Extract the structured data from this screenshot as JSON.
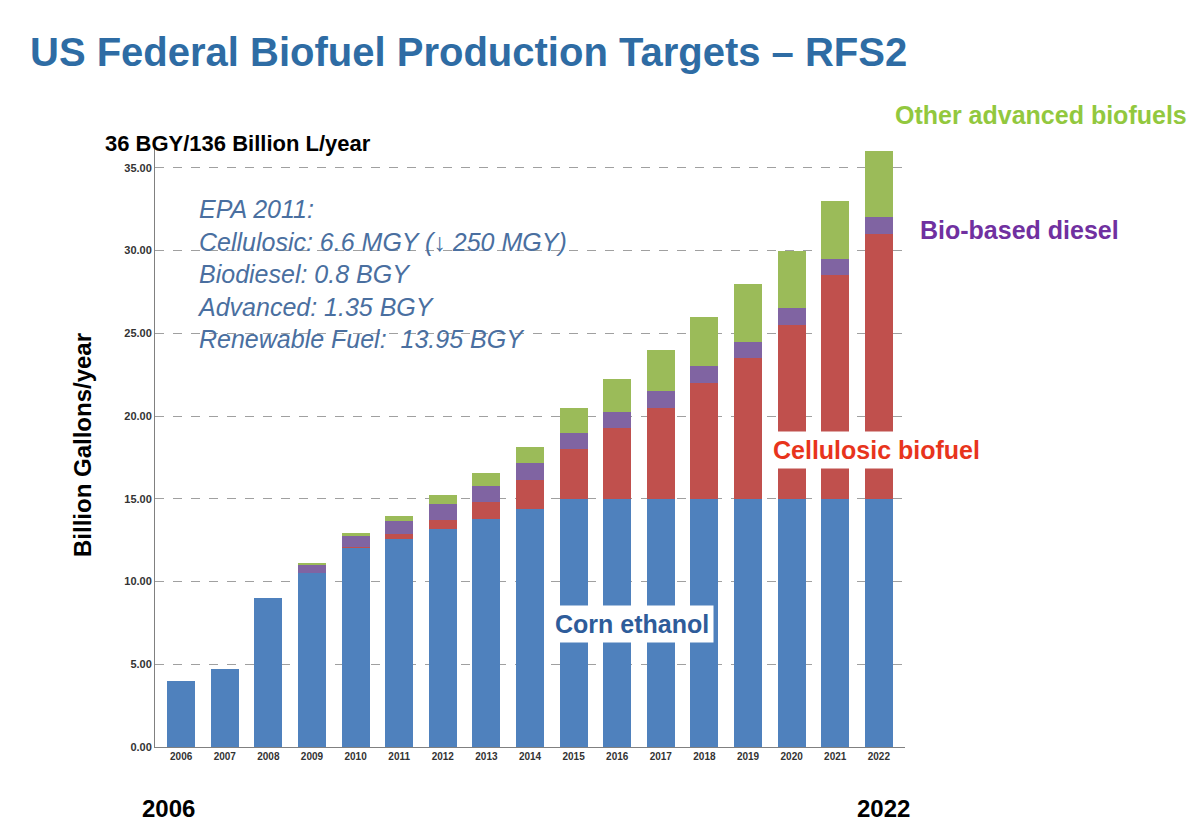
{
  "chart_data": {
    "type": "bar",
    "title": "US Federal Biofuel Production Targets – RFS2",
    "y_label": "Billion Gallons/year",
    "annotations": [
      "36 BGY/136 Billion L/year",
      "2006",
      "2022"
    ],
    "note_lines": [
      "EPA 2011:",
      "Cellulosic: 6.6 MGY (↓ 250 MGY)",
      "Biodiesel: 0.8 BGY",
      "Advanced: 1.35 BGY",
      "Renewable Fuel:  13.95 BGY"
    ],
    "categories": [
      "2006",
      "2007",
      "2008",
      "2009",
      "2010",
      "2011",
      "2012",
      "2013",
      "2014",
      "2015",
      "2016",
      "2017",
      "2018",
      "2019",
      "2020",
      "2021",
      "2022"
    ],
    "series": [
      {
        "name": "Corn ethanol",
        "color": "#4f81bd",
        "values": [
          4.0,
          4.7,
          9.0,
          10.5,
          12.0,
          12.6,
          13.2,
          13.8,
          14.4,
          15.0,
          15.0,
          15.0,
          15.0,
          15.0,
          15.0,
          15.0,
          15.0
        ]
      },
      {
        "name": "Cellulosic biofuel",
        "color": "#c0504d",
        "values": [
          0,
          0,
          0,
          0,
          0.1,
          0.25,
          0.5,
          1.0,
          1.75,
          3.0,
          4.25,
          5.5,
          7.0,
          8.5,
          10.5,
          13.5,
          16.0
        ]
      },
      {
        "name": "Bio-based diesel",
        "color": "#8064a2",
        "values": [
          0,
          0,
          0,
          0.5,
          0.65,
          0.8,
          1.0,
          1.0,
          1.0,
          1.0,
          1.0,
          1.0,
          1.0,
          1.0,
          1.0,
          1.0,
          1.0
        ]
      },
      {
        "name": "Other advanced biofuels",
        "color": "#9bbb59",
        "values": [
          0,
          0,
          0,
          0.1,
          0.2,
          0.3,
          0.5,
          0.75,
          1.0,
          1.5,
          2.0,
          2.5,
          3.0,
          3.5,
          3.5,
          3.5,
          4.0
        ]
      }
    ],
    "stacked": true,
    "grid": true,
    "ylim": [
      0,
      36.5
    ],
    "yticks": [
      {
        "value": 0,
        "label": "0.00"
      },
      {
        "value": 5,
        "label": "5.00"
      },
      {
        "value": 10,
        "label": "10.00"
      },
      {
        "value": 15,
        "label": "15.00"
      },
      {
        "value": 20,
        "label": "20.00"
      },
      {
        "value": 25,
        "label": "25.00"
      },
      {
        "value": 30,
        "label": "30.00"
      },
      {
        "value": 35,
        "label": "35.00"
      }
    ]
  }
}
